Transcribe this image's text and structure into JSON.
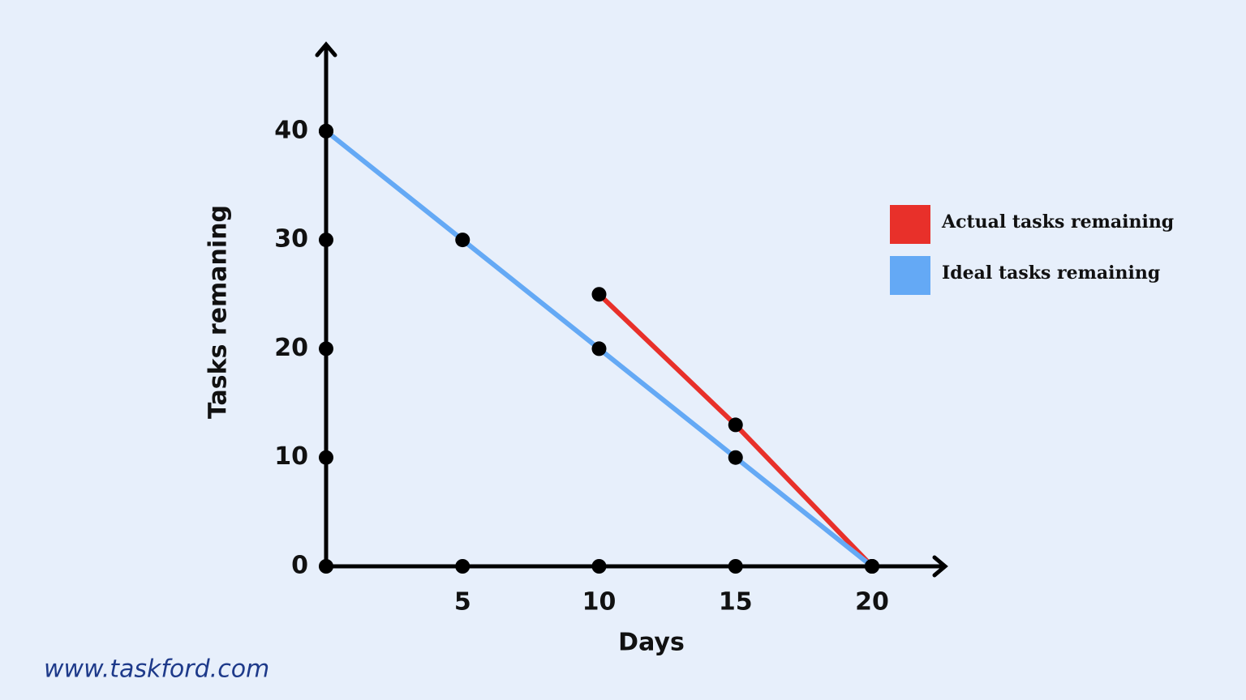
{
  "chart_data": {
    "type": "line",
    "x_label": "Days",
    "y_label": "Tasks remaning",
    "x": [
      0,
      5,
      10,
      15,
      20
    ],
    "series": [
      {
        "name": "Actual tasks remaining",
        "color": "#e8302a",
        "values": [
          40,
          null,
          25,
          13,
          0
        ]
      },
      {
        "name": "Ideal tasks remaining",
        "color": "#64a9f5",
        "values": [
          40,
          30,
          20,
          10,
          0
        ]
      }
    ],
    "xlim": [
      0,
      22.5
    ],
    "ylim": [
      0,
      48
    ],
    "xticks": [
      5,
      10,
      15,
      20
    ],
    "yticks": [
      0,
      10,
      20,
      30,
      40
    ],
    "grid": false,
    "legend": "right"
  },
  "watermark": "www.taskford.com"
}
